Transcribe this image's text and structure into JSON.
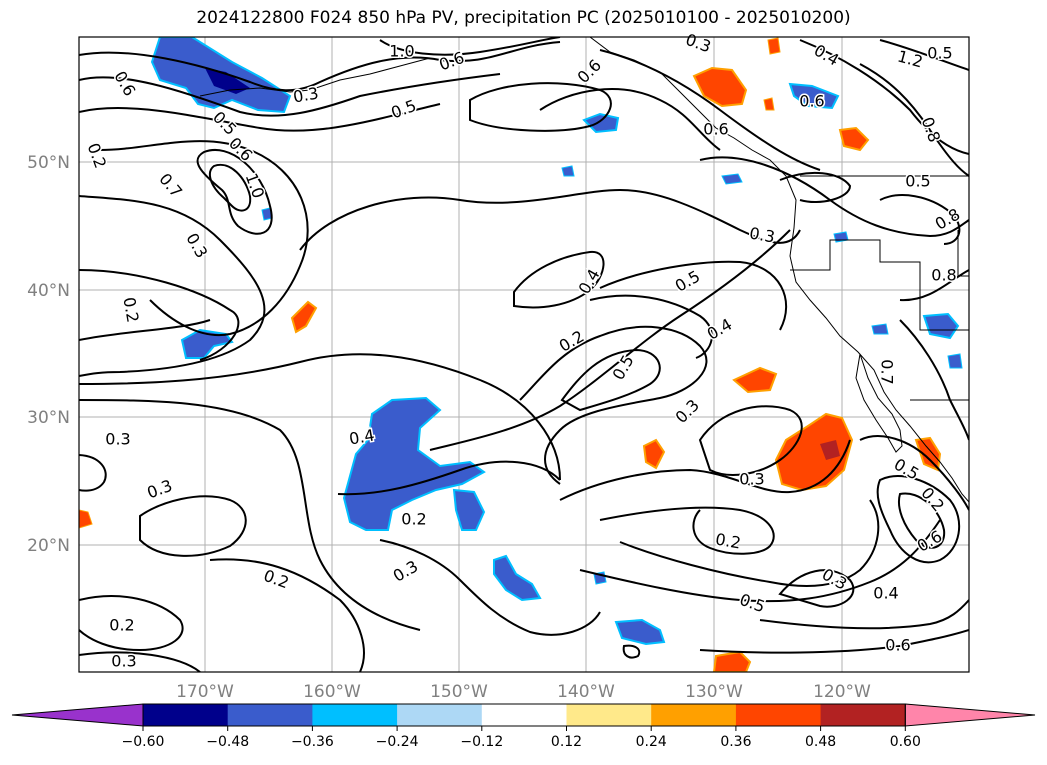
{
  "title": "2024122800 F024 850 hPa PV, precipitation PC (2025010100 - 2025010200)",
  "axes": {
    "lat_ticks": [
      "50°N",
      "40°N",
      "30°N",
      "20°N"
    ],
    "lon_ticks": [
      "170°W",
      "160°W",
      "150°W",
      "140°W",
      "130°W",
      "120°W"
    ]
  },
  "colorbar": {
    "colors": [
      "#9932cc",
      "#00008b",
      "#3a5ccc",
      "#00bfff",
      "#add8f5",
      "#ffffff",
      "#ffe98a",
      "#ffa000",
      "#ff4500",
      "#b22222",
      "#ff85aa"
    ],
    "labels": [
      "−0.60",
      "−0.48",
      "−0.36",
      "−0.24",
      "−0.12",
      "0.12",
      "0.24",
      "0.36",
      "0.48",
      "0.60"
    ]
  },
  "contour_labels": [
    "1.0",
    "1.2",
    "0.8",
    "0.6",
    "0.5",
    "0.6",
    "0.6",
    "0.5",
    "0.6",
    "0.6",
    "0.7",
    "1.0",
    "0.3",
    "0.2",
    "0.2",
    "0.4",
    "0.3",
    "0.2",
    "0.3",
    "0.5",
    "0.4",
    "0.5",
    "0.3",
    "0.4",
    "0.3",
    "0.2",
    "0.2",
    "0.3",
    "0.3",
    "0.2",
    "0.2",
    "0.3",
    "0.5",
    "0.3",
    "0.4",
    "0.6",
    "0.5",
    "0.2",
    "0.6",
    "0.7",
    "0.8",
    "0.5",
    "0.8",
    "0.6",
    "0.3",
    "0.4",
    "0.3",
    "0.5"
  ]
}
